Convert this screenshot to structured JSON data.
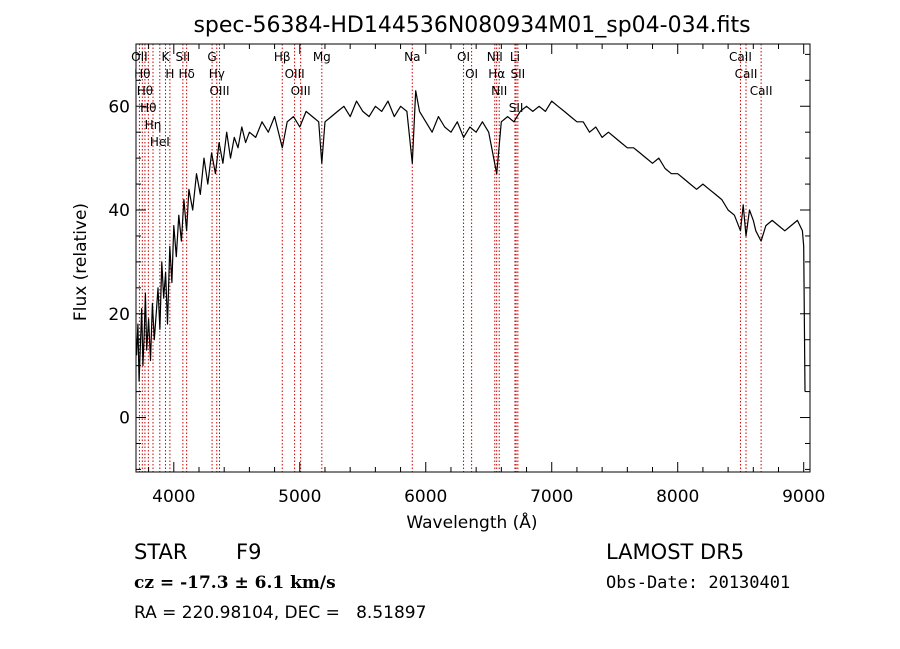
{
  "chart_data": {
    "type": "line",
    "title": "spec-56384-HD144536N080934M01_sp04-034.fits",
    "xlabel": "Wavelength (Å)",
    "ylabel": "Flux (relative)",
    "xlim": [
      3700,
      9050
    ],
    "ylim": [
      -10.5,
      72
    ],
    "xticks": [
      4000,
      5000,
      6000,
      7000,
      8000,
      9000
    ],
    "yticks": [
      0,
      20,
      40,
      60
    ],
    "grid": false,
    "series": [
      {
        "x": [
          3705,
          3715,
          3725,
          3735,
          3745,
          3755,
          3765,
          3775,
          3785,
          3800,
          3815,
          3830,
          3845,
          3860,
          3875,
          3890,
          3905,
          3920,
          3935,
          3950,
          3968,
          3985,
          4000,
          4020,
          4040,
          4060,
          4080,
          4102,
          4120,
          4150,
          4180,
          4210,
          4240,
          4270,
          4300,
          4330,
          4360,
          4390,
          4420,
          4450,
          4480,
          4510,
          4540,
          4570,
          4600,
          4650,
          4700,
          4750,
          4800,
          4861,
          4900,
          4950,
          5000,
          5050,
          5100,
          5150,
          5175,
          5200,
          5250,
          5300,
          5350,
          5400,
          5450,
          5500,
          5550,
          5600,
          5650,
          5700,
          5750,
          5800,
          5850,
          5893,
          5920,
          5950,
          6000,
          6050,
          6100,
          6150,
          6200,
          6250,
          6300,
          6350,
          6400,
          6450,
          6500,
          6563,
          6600,
          6650,
          6700,
          6750,
          6800,
          6850,
          6900,
          6950,
          7000,
          7050,
          7100,
          7150,
          7200,
          7250,
          7300,
          7350,
          7400,
          7450,
          7500,
          7550,
          7600,
          7650,
          7700,
          7750,
          7800,
          7850,
          7900,
          7950,
          8000,
          8050,
          8100,
          8150,
          8200,
          8250,
          8300,
          8350,
          8400,
          8450,
          8498,
          8520,
          8542,
          8570,
          8600,
          8620,
          8662,
          8700,
          8750,
          8800,
          8850,
          8900,
          8950,
          8990,
          9000,
          9010
        ],
        "values": [
          12,
          18,
          7,
          14,
          21,
          10,
          16,
          24,
          13,
          19,
          11,
          22,
          15,
          20,
          25,
          17,
          30,
          23,
          28,
          18,
          33,
          26,
          37,
          31,
          39,
          34,
          42,
          36,
          44,
          40,
          47,
          43,
          50,
          45,
          51,
          47,
          53,
          49,
          55,
          50,
          54,
          52,
          56,
          53,
          55,
          54,
          57,
          55,
          58,
          52,
          57,
          58,
          56,
          59,
          58,
          57,
          49,
          57,
          58,
          59,
          60,
          58,
          61,
          59,
          58,
          60,
          59,
          61,
          58,
          60,
          59,
          49,
          63,
          59,
          57,
          55,
          58,
          56,
          55,
          57,
          54,
          56,
          55,
          57,
          55,
          47,
          57,
          58,
          57,
          59,
          60,
          59,
          60,
          59,
          61,
          60,
          59,
          58,
          57,
          57,
          55,
          56,
          54,
          55,
          54,
          53,
          52,
          52,
          51,
          50,
          49,
          50,
          48,
          47,
          47,
          46,
          45,
          44,
          45,
          44,
          43,
          42,
          40,
          39,
          36,
          41,
          35,
          40,
          38,
          36,
          34,
          37,
          38,
          37,
          36,
          37,
          38,
          36,
          33,
          5
        ]
      }
    ],
    "lines": [
      {
        "x": 3727,
        "labels": [
          "OII"
        ]
      },
      {
        "x": 3750,
        "labels": [
          "Hθ"
        ]
      },
      {
        "x": 3771,
        "labels": [
          "Hθ"
        ]
      },
      {
        "x": 3798,
        "labels": [
          "Hθ"
        ]
      },
      {
        "x": 3835,
        "labels": [
          "Hη"
        ]
      },
      {
        "x": 3889,
        "labels": [
          "HeI"
        ]
      },
      {
        "x": 3934,
        "labels": [
          "K"
        ]
      },
      {
        "x": 3969,
        "labels": [
          "H"
        ]
      },
      {
        "x": 4072,
        "labels": [
          "SII"
        ]
      },
      {
        "x": 4102,
        "labels": [
          "Hδ"
        ]
      },
      {
        "x": 4304,
        "labels": [
          "G"
        ]
      },
      {
        "x": 4341,
        "labels": [
          "Hγ"
        ]
      },
      {
        "x": 4363,
        "labels": [
          "OIII"
        ]
      },
      {
        "x": 4861,
        "labels": [
          "Hβ"
        ]
      },
      {
        "x": 4959,
        "labels": [
          "OIII"
        ]
      },
      {
        "x": 5007,
        "labels": [
          "OIII"
        ]
      },
      {
        "x": 5175,
        "labels": [
          "Mg"
        ]
      },
      {
        "x": 5893,
        "labels": [
          "Na"
        ]
      },
      {
        "x": 6300,
        "labels": [
          "OI"
        ]
      },
      {
        "x": 6364,
        "labels": [
          "OI"
        ]
      },
      {
        "x": 6548,
        "labels": [
          "NII"
        ]
      },
      {
        "x": 6563,
        "labels": [
          "Hα"
        ]
      },
      {
        "x": 6583,
        "labels": [
          "NII"
        ]
      },
      {
        "x": 6708,
        "labels": [
          "Li"
        ]
      },
      {
        "x": 6717,
        "labels": [
          "SII"
        ]
      },
      {
        "x": 6731,
        "labels": [
          "SII"
        ]
      },
      {
        "x": 8498,
        "labels": [
          "CaII"
        ]
      },
      {
        "x": 8542,
        "labels": [
          "CaII"
        ]
      },
      {
        "x": 8662,
        "labels": [
          "CaII"
        ]
      }
    ],
    "line_color": "#000000",
    "marker_color": "#cc0000"
  },
  "info": {
    "obj_class": "STAR",
    "subclass": "F9",
    "survey": "LAMOST DR5",
    "redshift": "cz = -17.3 ± 6.1 km/s",
    "obs_date": "Obs-Date: 20130401",
    "coords": "RA = 220.98104, DEC =   8.51897"
  }
}
